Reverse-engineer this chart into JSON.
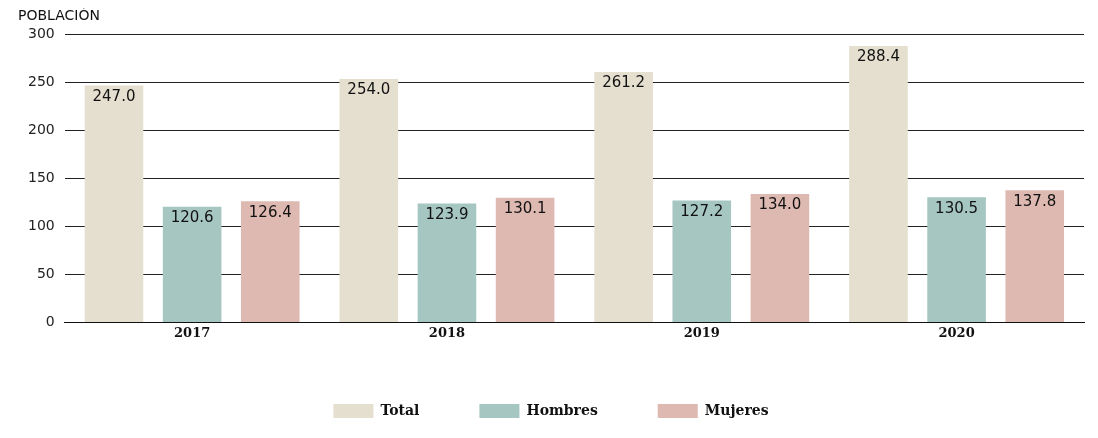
{
  "chart_data": {
    "type": "bar",
    "ylabel": "POBLACIÓN",
    "categories": [
      "2017",
      "2018",
      "2019",
      "2020"
    ],
    "series": [
      {
        "name": "Total",
        "color": "#e5dfcf",
        "values": [
          247.0,
          254.0,
          261.2,
          288.4
        ],
        "value_labels": [
          "247.0",
          "254.0",
          "261.2",
          "288.4"
        ]
      },
      {
        "name": "Hombres",
        "color": "#a5c6c1",
        "values": [
          120.6,
          123.9,
          127.2,
          130.5
        ],
        "value_labels": [
          "120.6",
          "123.9",
          "127.2",
          "130.5"
        ]
      },
      {
        "name": "Mujeres",
        "color": "#deb9b1",
        "values": [
          126.4,
          130.1,
          134.0,
          137.8
        ],
        "value_labels": [
          "126.4",
          "130.1",
          "134.0",
          "137.8"
        ]
      }
    ],
    "ylim": [
      0,
      300
    ],
    "yticks": [
      0,
      50,
      100,
      150,
      200,
      250,
      300
    ],
    "grid": "y",
    "legend": "bottom"
  }
}
